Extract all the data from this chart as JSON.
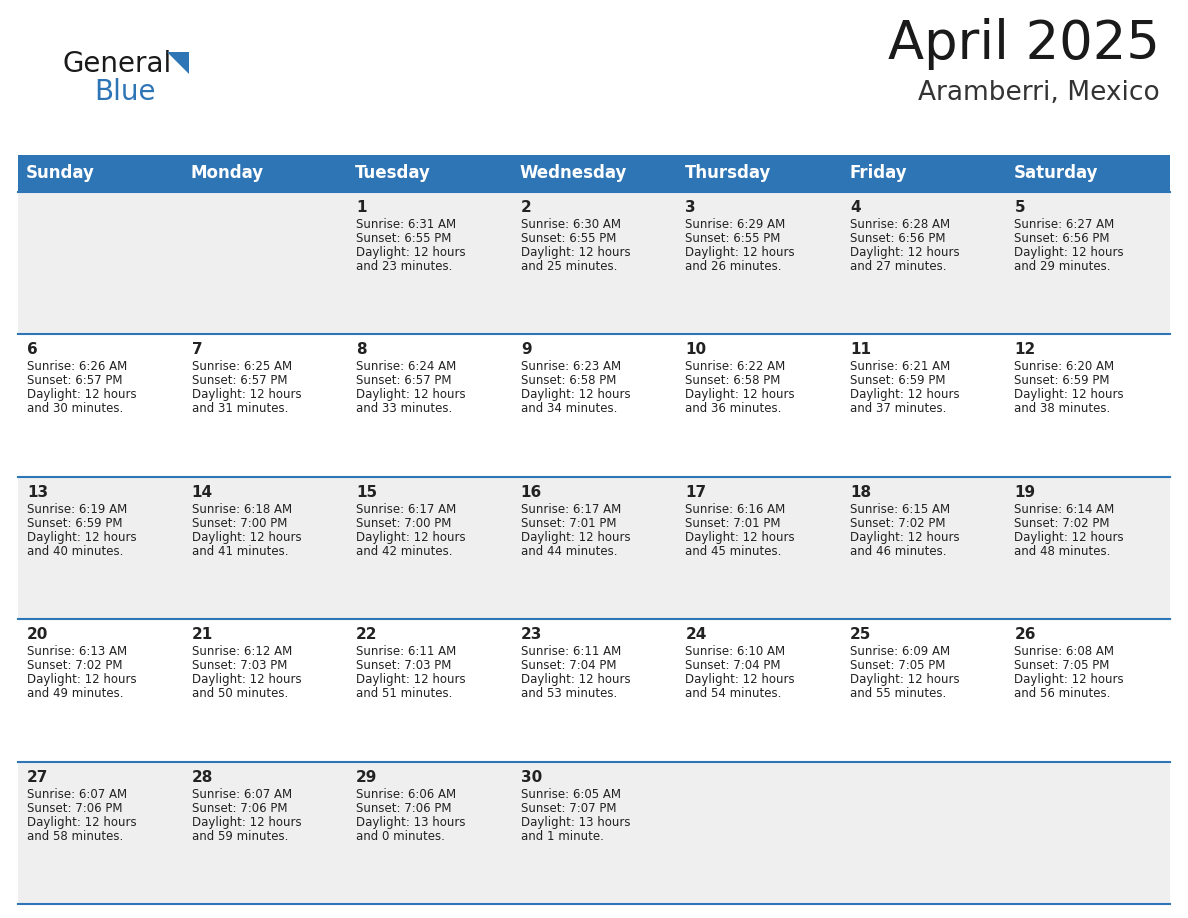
{
  "title": "April 2025",
  "subtitle": "Aramberri, Mexico",
  "header_color": "#2E75B6",
  "header_text_color": "#FFFFFF",
  "cell_bg_odd": "#EFEFEF",
  "cell_bg_even": "#FFFFFF",
  "day_names": [
    "Sunday",
    "Monday",
    "Tuesday",
    "Wednesday",
    "Thursday",
    "Friday",
    "Saturday"
  ],
  "days": [
    {
      "day": 1,
      "col": 2,
      "row": 0,
      "sunrise": "6:31 AM",
      "sunset": "6:55 PM",
      "daylight": "12 hours",
      "daylight2": "and 23 minutes."
    },
    {
      "day": 2,
      "col": 3,
      "row": 0,
      "sunrise": "6:30 AM",
      "sunset": "6:55 PM",
      "daylight": "12 hours",
      "daylight2": "and 25 minutes."
    },
    {
      "day": 3,
      "col": 4,
      "row": 0,
      "sunrise": "6:29 AM",
      "sunset": "6:55 PM",
      "daylight": "12 hours",
      "daylight2": "and 26 minutes."
    },
    {
      "day": 4,
      "col": 5,
      "row": 0,
      "sunrise": "6:28 AM",
      "sunset": "6:56 PM",
      "daylight": "12 hours",
      "daylight2": "and 27 minutes."
    },
    {
      "day": 5,
      "col": 6,
      "row": 0,
      "sunrise": "6:27 AM",
      "sunset": "6:56 PM",
      "daylight": "12 hours",
      "daylight2": "and 29 minutes."
    },
    {
      "day": 6,
      "col": 0,
      "row": 1,
      "sunrise": "6:26 AM",
      "sunset": "6:57 PM",
      "daylight": "12 hours",
      "daylight2": "and 30 minutes."
    },
    {
      "day": 7,
      "col": 1,
      "row": 1,
      "sunrise": "6:25 AM",
      "sunset": "6:57 PM",
      "daylight": "12 hours",
      "daylight2": "and 31 minutes."
    },
    {
      "day": 8,
      "col": 2,
      "row": 1,
      "sunrise": "6:24 AM",
      "sunset": "6:57 PM",
      "daylight": "12 hours",
      "daylight2": "and 33 minutes."
    },
    {
      "day": 9,
      "col": 3,
      "row": 1,
      "sunrise": "6:23 AM",
      "sunset": "6:58 PM",
      "daylight": "12 hours",
      "daylight2": "and 34 minutes."
    },
    {
      "day": 10,
      "col": 4,
      "row": 1,
      "sunrise": "6:22 AM",
      "sunset": "6:58 PM",
      "daylight": "12 hours",
      "daylight2": "and 36 minutes."
    },
    {
      "day": 11,
      "col": 5,
      "row": 1,
      "sunrise": "6:21 AM",
      "sunset": "6:59 PM",
      "daylight": "12 hours",
      "daylight2": "and 37 minutes."
    },
    {
      "day": 12,
      "col": 6,
      "row": 1,
      "sunrise": "6:20 AM",
      "sunset": "6:59 PM",
      "daylight": "12 hours",
      "daylight2": "and 38 minutes."
    },
    {
      "day": 13,
      "col": 0,
      "row": 2,
      "sunrise": "6:19 AM",
      "sunset": "6:59 PM",
      "daylight": "12 hours",
      "daylight2": "and 40 minutes."
    },
    {
      "day": 14,
      "col": 1,
      "row": 2,
      "sunrise": "6:18 AM",
      "sunset": "7:00 PM",
      "daylight": "12 hours",
      "daylight2": "and 41 minutes."
    },
    {
      "day": 15,
      "col": 2,
      "row": 2,
      "sunrise": "6:17 AM",
      "sunset": "7:00 PM",
      "daylight": "12 hours",
      "daylight2": "and 42 minutes."
    },
    {
      "day": 16,
      "col": 3,
      "row": 2,
      "sunrise": "6:17 AM",
      "sunset": "7:01 PM",
      "daylight": "12 hours",
      "daylight2": "and 44 minutes."
    },
    {
      "day": 17,
      "col": 4,
      "row": 2,
      "sunrise": "6:16 AM",
      "sunset": "7:01 PM",
      "daylight": "12 hours",
      "daylight2": "and 45 minutes."
    },
    {
      "day": 18,
      "col": 5,
      "row": 2,
      "sunrise": "6:15 AM",
      "sunset": "7:02 PM",
      "daylight": "12 hours",
      "daylight2": "and 46 minutes."
    },
    {
      "day": 19,
      "col": 6,
      "row": 2,
      "sunrise": "6:14 AM",
      "sunset": "7:02 PM",
      "daylight": "12 hours",
      "daylight2": "and 48 minutes."
    },
    {
      "day": 20,
      "col": 0,
      "row": 3,
      "sunrise": "6:13 AM",
      "sunset": "7:02 PM",
      "daylight": "12 hours",
      "daylight2": "and 49 minutes."
    },
    {
      "day": 21,
      "col": 1,
      "row": 3,
      "sunrise": "6:12 AM",
      "sunset": "7:03 PM",
      "daylight": "12 hours",
      "daylight2": "and 50 minutes."
    },
    {
      "day": 22,
      "col": 2,
      "row": 3,
      "sunrise": "6:11 AM",
      "sunset": "7:03 PM",
      "daylight": "12 hours",
      "daylight2": "and 51 minutes."
    },
    {
      "day": 23,
      "col": 3,
      "row": 3,
      "sunrise": "6:11 AM",
      "sunset": "7:04 PM",
      "daylight": "12 hours",
      "daylight2": "and 53 minutes."
    },
    {
      "day": 24,
      "col": 4,
      "row": 3,
      "sunrise": "6:10 AM",
      "sunset": "7:04 PM",
      "daylight": "12 hours",
      "daylight2": "and 54 minutes."
    },
    {
      "day": 25,
      "col": 5,
      "row": 3,
      "sunrise": "6:09 AM",
      "sunset": "7:05 PM",
      "daylight": "12 hours",
      "daylight2": "and 55 minutes."
    },
    {
      "day": 26,
      "col": 6,
      "row": 3,
      "sunrise": "6:08 AM",
      "sunset": "7:05 PM",
      "daylight": "12 hours",
      "daylight2": "and 56 minutes."
    },
    {
      "day": 27,
      "col": 0,
      "row": 4,
      "sunrise": "6:07 AM",
      "sunset": "7:06 PM",
      "daylight": "12 hours",
      "daylight2": "and 58 minutes."
    },
    {
      "day": 28,
      "col": 1,
      "row": 4,
      "sunrise": "6:07 AM",
      "sunset": "7:06 PM",
      "daylight": "12 hours",
      "daylight2": "and 59 minutes."
    },
    {
      "day": 29,
      "col": 2,
      "row": 4,
      "sunrise": "6:06 AM",
      "sunset": "7:06 PM",
      "daylight": "13 hours",
      "daylight2": "and 0 minutes."
    },
    {
      "day": 30,
      "col": 3,
      "row": 4,
      "sunrise": "6:05 AM",
      "sunset": "7:07 PM",
      "daylight": "13 hours",
      "daylight2": "and 1 minute."
    }
  ],
  "logo_color_general": "#1a1a1a",
  "logo_color_blue": "#2E75B6",
  "title_fontsize": 38,
  "subtitle_fontsize": 19,
  "header_fontsize": 12,
  "day_num_fontsize": 11,
  "cell_text_fontsize": 8.5,
  "border_color": "#2E75B6"
}
